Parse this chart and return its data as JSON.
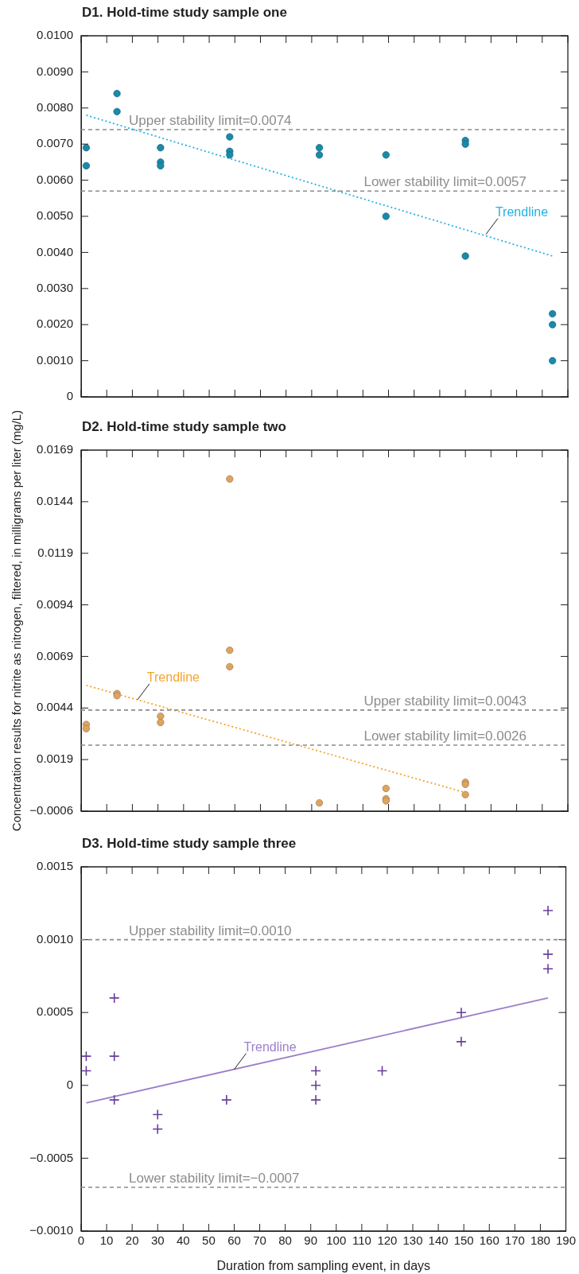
{
  "chart_data": [
    {
      "type": "scatter",
      "title": "D1.  Hold-time study sample one",
      "xlim": [
        0,
        190
      ],
      "xticks": [
        0,
        10,
        20,
        30,
        40,
        50,
        60,
        70,
        80,
        90,
        100,
        110,
        120,
        130,
        140,
        150,
        160,
        170,
        180,
        190
      ],
      "ylim": [
        0,
        0.01
      ],
      "yticks": [
        0,
        {
          "value": 0.001,
          "label": "0.0010"
        },
        {
          "value": 0.002,
          "label": "0.0020"
        },
        {
          "value": 0.003,
          "label": "0.0030"
        },
        {
          "value": 0.004,
          "label": "0.0040"
        },
        {
          "value": 0.005,
          "label": "0.0050"
        },
        {
          "value": 0.006,
          "label": "0.0060"
        },
        {
          "value": 0.007,
          "label": "0.0070"
        },
        {
          "value": 0.008,
          "label": "0.0080"
        },
        {
          "value": 0.009,
          "label": "0.0090"
        },
        {
          "value": 0.01,
          "label": "0.0100"
        }
      ],
      "tick_labels": "y",
      "series": [
        {
          "type": "scatter",
          "marker": "circle",
          "color": "#1a8aa8",
          "x": [
            2,
            2,
            14,
            14,
            31,
            31,
            31,
            58,
            58,
            58,
            93,
            93,
            119,
            119,
            150,
            150,
            150,
            184,
            184,
            184
          ],
          "values": [
            0.0069,
            0.0064,
            0.0084,
            0.0079,
            0.0069,
            0.0065,
            0.0064,
            0.0072,
            0.0068,
            0.0067,
            0.0069,
            0.0067,
            0.0067,
            0.005,
            0.0071,
            0.007,
            0.0039,
            0.0023,
            0.002,
            0.001
          ]
        },
        {
          "type": "line",
          "marker": "none",
          "line_style": "dotted",
          "color": "#22b2e6",
          "x": [
            2,
            184
          ],
          "values": [
            0.0078,
            0.0039
          ]
        }
      ],
      "ref_lines": [
        {
          "axis": "y",
          "value": 0.0074,
          "label": "Upper stability limit=0.0074",
          "color": "#8c8c8c",
          "line_style": "dashed"
        },
        {
          "axis": "y",
          "value": 0.0057,
          "label": "Lower stability limit=0.0057",
          "color": "#8c8c8c",
          "line_style": "dashed"
        }
      ],
      "annotations": [
        {
          "text": "Trendline",
          "x": 158,
          "y": 0.0045
        }
      ]
    },
    {
      "type": "scatter",
      "title": "D2.  Hold-time study sample two",
      "ylabel": "Concentration results for nitrite as nitrogen, filtered, in milligrams per liter (mg/L)",
      "xlim": [
        0,
        190
      ],
      "xticks": [
        0,
        10,
        20,
        30,
        40,
        50,
        60,
        70,
        80,
        90,
        100,
        110,
        120,
        130,
        140,
        150,
        160,
        170,
        180,
        190
      ],
      "ylim": [
        -0.0006,
        0.0169
      ],
      "yticks": [
        {
          "value": -0.0006,
          "label": "−0.0006"
        },
        0.0019,
        0.0044,
        0.0069,
        0.0094,
        0.0119,
        0.0144,
        0.0169
      ],
      "tick_labels": "y",
      "series": [
        {
          "type": "scatter",
          "marker": "circle",
          "color": "#dca462",
          "x": [
            2,
            2,
            14,
            14,
            31,
            31,
            58,
            58,
            58,
            93,
            119,
            119,
            119,
            150,
            150,
            150
          ],
          "values": [
            0.0036,
            0.0034,
            0.0051,
            0.005,
            0.004,
            0.0037,
            0.0155,
            0.0072,
            0.0064,
            -0.0002,
            0.0005,
            0.0,
            -0.0001,
            0.0008,
            0.0007,
            0.0002
          ]
        },
        {
          "type": "line",
          "marker": "none",
          "line_style": "dotted",
          "color": "#f5a32a",
          "x": [
            2,
            150
          ],
          "values": [
            0.0055,
            0.0003
          ]
        }
      ],
      "ref_lines": [
        {
          "axis": "y",
          "value": 0.0043,
          "label": "Upper stability limit=0.0043",
          "color": "#8c8c8c",
          "line_style": "dashed"
        },
        {
          "axis": "y",
          "value": 0.0026,
          "label": "Lower stability limit=0.0026",
          "color": "#8c8c8c",
          "line_style": "dashed"
        }
      ],
      "annotations": [
        {
          "text": "Trendline",
          "x": 22,
          "y": 0.0048
        }
      ]
    },
    {
      "type": "scatter",
      "title": "D3.  Hold-time study sample three",
      "xlabel": "Duration from sampling event, in days",
      "xlim": [
        0,
        190
      ],
      "xticks": [
        0,
        10,
        20,
        30,
        40,
        50,
        60,
        70,
        80,
        90,
        100,
        110,
        120,
        130,
        140,
        150,
        160,
        170,
        180,
        190
      ],
      "ylim": [
        -0.001,
        0.0015
      ],
      "yticks": [
        {
          "value": -0.001,
          "label": "−0.0010"
        },
        {
          "value": -0.0005,
          "label": "−0.0005"
        },
        0,
        0.0005,
        {
          "value": 0.001,
          "label": "0.0010"
        },
        0.0015
      ],
      "series": [
        {
          "type": "scatter",
          "marker": "cross",
          "color": "#6a3d9e",
          "x": [
            2,
            2,
            13,
            13,
            13,
            30,
            30,
            57,
            92,
            92,
            92,
            118,
            149,
            149,
            183,
            183,
            183
          ],
          "values": [
            0.0002,
            0.0001,
            0.0006,
            0.0002,
            -0.0001,
            -0.0002,
            -0.0003,
            -0.0001,
            0.0001,
            0.0,
            -0.0001,
            0.0001,
            0.0005,
            0.0003,
            0.0012,
            0.0009,
            0.0008
          ]
        },
        {
          "type": "line",
          "marker": "none",
          "line_style": "solid",
          "color": "#9b7fca",
          "x": [
            2,
            183
          ],
          "values": [
            -0.00012,
            0.0006
          ]
        }
      ],
      "ref_lines": [
        {
          "axis": "y",
          "value": 0.001,
          "label": "Upper stability limit=0.0010",
          "color": "#8c8c8c",
          "line_style": "dashed"
        },
        {
          "axis": "y",
          "value": -0.0007,
          "label": "Lower stability limit=−0.0007",
          "color": "#8c8c8c",
          "line_style": "dashed"
        }
      ],
      "annotations": [
        {
          "text": "Trendline",
          "x": 60,
          "y": 0.00011
        }
      ]
    }
  ]
}
